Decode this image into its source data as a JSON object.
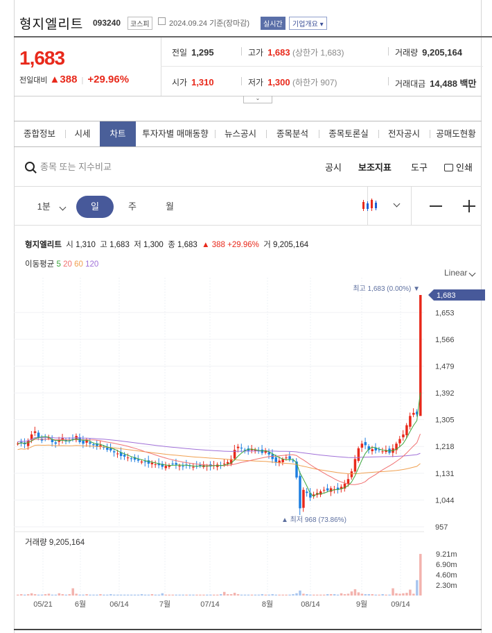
{
  "header": {
    "company": "형지엘리트",
    "code": "093240",
    "market": "코스피",
    "date_text": "2024.09.24 기준(장마감)",
    "realtime": "실시간",
    "overview": "기업개요 ▾"
  },
  "price": {
    "current": "1,683",
    "change_label": "전일대비",
    "change": "388",
    "change_pct": "+29.96%"
  },
  "stats": {
    "prev_label": "전일",
    "prev": "1,295",
    "high_label": "고가",
    "high": "1,683",
    "upper_limit": "(상한가 1,683)",
    "volume_label": "거래량",
    "volume": "9,205,164",
    "open_label": "시가",
    "open": "1,310",
    "low_label": "저가",
    "low": "1,300",
    "lower_limit": "(하한가 907)",
    "amount_label": "거래대금",
    "amount": "14,488 백만"
  },
  "tabs": [
    "종합정보",
    "시세",
    "차트",
    "투자자별 매매동향",
    "뉴스공시",
    "종목분석",
    "종목토론실",
    "전자공시",
    "공매도현황"
  ],
  "toolbar": {
    "search_placeholder": "종목 또는 지수비교",
    "notice": "공시",
    "indicator": "보조지표",
    "tools": "도구",
    "print": "인쇄"
  },
  "periods": {
    "minute": "1분",
    "day": "일",
    "week": "주",
    "month": "월"
  },
  "legend": {
    "name": "형지엘리트",
    "o_label": "시",
    "open": "1,310",
    "h_label": "고",
    "high": "1,683",
    "l_label": "저",
    "low": "1,300",
    "c_label": "종",
    "close": "1,683",
    "chg": "▲ 388 +29.96%",
    "v_label": "거",
    "volume": "9,205,164"
  },
  "ma": {
    "label": "이동평균",
    "ma5": "5",
    "ma20": "20",
    "ma60": "60",
    "ma120": "120"
  },
  "scale": "Linear",
  "colors": {
    "up": "#e8291b",
    "down": "#1e7fe0",
    "ma5": "#3aa63a",
    "ma20": "#f07070",
    "ma60": "#f0a050",
    "ma120": "#a070d8",
    "accent": "#47599a"
  },
  "chart_data": {
    "type": "candlestick",
    "y_ticks": [
      "1,653",
      "1,566",
      "1,479",
      "1,392",
      "1,305",
      "1,218",
      "1,131",
      "1,044",
      "957"
    ],
    "x_ticks": [
      "05/21",
      "6월",
      "06/14",
      "7월",
      "07/14",
      "8월",
      "08/14",
      "9월",
      "09/14"
    ],
    "ylim": [
      957,
      1700
    ],
    "last_price": "1,683",
    "max_label": "최고 1,683 (0.00%) ▼",
    "min_label": "▲ 최저 968 (73.86%)",
    "volume_title": "거래량 9,205,164",
    "volume_ticks": [
      "9.21m",
      "6.90m",
      "4.60m",
      "2.30m"
    ],
    "closes": [
      1200,
      1205,
      1198,
      1210,
      1230,
      1240,
      1220,
      1210,
      1215,
      1220,
      1205,
      1200,
      1212,
      1218,
      1208,
      1210,
      1215,
      1225,
      1205,
      1200,
      1210,
      1200,
      1195,
      1190,
      1195,
      1188,
      1180,
      1178,
      1172,
      1168,
      1160,
      1158,
      1155,
      1150,
      1148,
      1145,
      1142,
      1140,
      1135,
      1138,
      1133,
      1130,
      1125,
      1128,
      1130,
      1135,
      1132,
      1128,
      1126,
      1130,
      1128,
      1125,
      1126,
      1128,
      1130,
      1128,
      1126,
      1130,
      1132,
      1128,
      1135,
      1140,
      1150,
      1180,
      1190,
      1185,
      1180,
      1175,
      1182,
      1180,
      1175,
      1170,
      1178,
      1165,
      1150,
      1140,
      1145,
      1150,
      1155,
      1150,
      1145,
      1090,
      990,
      1050,
      1040,
      1025,
      1035,
      1040,
      1045,
      1050,
      1048,
      1055,
      1052,
      1050,
      1060,
      1070,
      1085,
      1110,
      1150,
      1185,
      1200,
      1195,
      1180,
      1182,
      1178,
      1180,
      1175,
      1178,
      1170,
      1185,
      1200,
      1215,
      1230,
      1260,
      1290,
      1300,
      1295,
      1683
    ],
    "volumes": [
      0.2,
      0.3,
      0.2,
      0.3,
      0.5,
      0.3,
      0.2,
      0.2,
      0.3,
      0.4,
      0.2,
      0.2,
      0.5,
      0.3,
      0.2,
      0.3,
      1.6,
      0.4,
      0.2,
      0.2,
      0.3,
      0.2,
      0.2,
      0.2,
      0.3,
      0.2,
      0.2,
      0.3,
      0.2,
      0.2,
      0.2,
      0.2,
      0.2,
      0.2,
      0.2,
      0.2,
      0.3,
      0.2,
      0.2,
      0.3,
      0.2,
      0.2,
      0.5,
      0.2,
      0.2,
      0.2,
      0.2,
      0.2,
      0.2,
      0.2,
      0.2,
      0.2,
      0.2,
      0.2,
      0.2,
      0.2,
      0.2,
      0.2,
      0.2,
      0.3,
      0.8,
      0.3,
      0.3,
      0.6,
      0.3,
      0.2,
      0.2,
      0.2,
      0.2,
      0.2,
      0.2,
      0.3,
      0.2,
      0.2,
      0.3,
      0.2,
      0.2,
      0.2,
      0.2,
      0.2,
      0.3,
      0.5,
      1.1,
      0.4,
      0.3,
      0.2,
      0.2,
      0.2,
      0.2,
      0.2,
      0.3,
      0.3,
      0.3,
      0.2,
      0.5,
      0.3,
      0.4,
      0.9,
      1.4,
      0.7,
      0.4,
      0.3,
      0.3,
      0.3,
      0.2,
      0.2,
      0.3,
      0.2,
      0.2,
      1.6,
      0.5,
      0.4,
      0.5,
      0.6,
      1.3,
      0.4,
      3.4,
      9.2
    ]
  }
}
